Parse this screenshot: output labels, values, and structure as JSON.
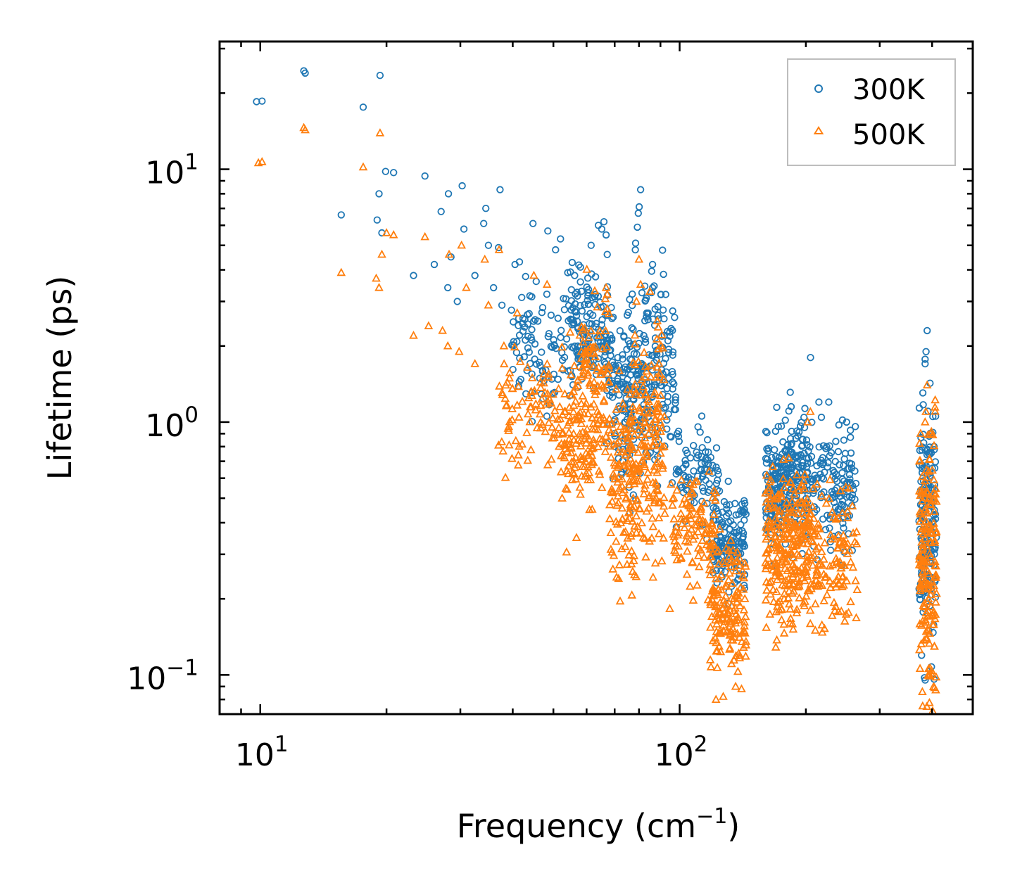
{
  "chart_data": {
    "type": "scatter",
    "xscale": "log",
    "yscale": "log",
    "xlim": [
      8,
      500
    ],
    "ylim": [
      0.07,
      32
    ],
    "xlabel": "Frequency (cm",
    "xlabel_sup": "−1",
    "xlabel_end": ")",
    "ylabel": "Lifetime (ps)",
    "x_ticks": [
      {
        "value": 10,
        "base": "10",
        "exp": "1"
      },
      {
        "value": 100,
        "base": "10",
        "exp": "2"
      }
    ],
    "y_ticks": [
      {
        "value": 10,
        "base": "10",
        "exp": "1"
      },
      {
        "value": 1,
        "base": "10",
        "exp": "0"
      },
      {
        "value": 0.1,
        "base": "10",
        "exp": "−1"
      }
    ],
    "legend_position": "top-right",
    "series": [
      {
        "name": "300K",
        "marker": "circle",
        "color": "#1f77b4",
        "points": [
          [
            9.8,
            18.5
          ],
          [
            10.1,
            18.6
          ],
          [
            12.7,
            24.5
          ],
          [
            12.8,
            24.0
          ],
          [
            17.6,
            17.6
          ],
          [
            19.3,
            23.5
          ],
          [
            19.9,
            9.8
          ],
          [
            20.8,
            9.7
          ],
          [
            24.7,
            9.4
          ],
          [
            28.1,
            8.0
          ],
          [
            30.3,
            8.6
          ],
          [
            37.3,
            8.3
          ],
          [
            15.6,
            6.6
          ],
          [
            19.0,
            6.3
          ],
          [
            19.5,
            5.6
          ],
          [
            27.0,
            6.8
          ],
          [
            30.6,
            5.8
          ],
          [
            34.1,
            6.1
          ],
          [
            34.5,
            7.0
          ],
          [
            19.2,
            8.0
          ],
          [
            26.0,
            4.2
          ],
          [
            28.5,
            4.5
          ],
          [
            35.0,
            5.0
          ],
          [
            37.0,
            4.9
          ],
          [
            44.7,
            6.1
          ],
          [
            48.5,
            5.7
          ],
          [
            23.2,
            3.8
          ],
          [
            28.0,
            3.4
          ],
          [
            29.5,
            3.0
          ],
          [
            32.5,
            3.8
          ],
          [
            36.0,
            3.4
          ],
          [
            37.7,
            2.9
          ],
          [
            40.5,
            4.2
          ],
          [
            41.5,
            4.3
          ],
          [
            45.5,
            3.6
          ],
          [
            50.6,
            4.8
          ],
          [
            52.0,
            5.3
          ],
          [
            54.1,
            3.9
          ],
          [
            56.2,
            3.8
          ],
          [
            58.0,
            4.1
          ],
          [
            61.5,
            5.0
          ],
          [
            64.0,
            6.0
          ],
          [
            65.2,
            5.8
          ],
          [
            66.0,
            6.2
          ],
          [
            66.8,
            5.5
          ],
          [
            67.2,
            4.6
          ],
          [
            78.4,
            4.8
          ],
          [
            79.7,
            6.7
          ],
          [
            80.7,
            8.3
          ],
          [
            80.1,
            7.1
          ],
          [
            79.3,
            5.9
          ],
          [
            86.2,
            4.2
          ],
          [
            90.2,
            3.2
          ],
          [
            205.2,
            1.8
          ],
          [
            214.8,
            1.2
          ],
          [
            226.8,
            1.2
          ],
          [
            250.1,
            1.0
          ],
          [
            262.4,
            0.96
          ],
          [
            389.3,
            2.3
          ],
          [
            386.8,
            1.9
          ],
          [
            384.9,
            1.7
          ],
          [
            402.5,
            0.38
          ],
          [
            409.3,
            0.35
          ]
        ],
        "clusters": [
          {
            "x": [
              39.5,
              58.0
            ],
            "y_center": 1.9,
            "y_spread": 0.28,
            "count": 110
          },
          {
            "x": [
              55.0,
              67.5
            ],
            "y_center": 2.4,
            "y_spread": 0.22,
            "count": 120
          },
          {
            "x": [
              67.0,
              76.0
            ],
            "y_center": 1.3,
            "y_spread": 0.35,
            "count": 90
          },
          {
            "x": [
              74.0,
              84.0
            ],
            "y_center": 1.5,
            "y_spread": 0.4,
            "count": 110
          },
          {
            "x": [
              84.0,
              98.0
            ],
            "y_center": 1.6,
            "y_spread": 0.4,
            "count": 110
          },
          {
            "x": [
              98.0,
              125.0
            ],
            "y_center": 0.62,
            "y_spread": 0.2,
            "count": 90
          },
          {
            "x": [
              120.0,
              144.0
            ],
            "y_center": 0.33,
            "y_spread": 0.18,
            "count": 140
          },
          {
            "x": [
              160.0,
              202.0
            ],
            "y_center": 0.58,
            "y_spread": 0.25,
            "count": 260
          },
          {
            "x": [
              200.0,
              264.0
            ],
            "y_center": 0.55,
            "y_spread": 0.24,
            "count": 140
          },
          {
            "x": [
              372.0,
              408.0
            ],
            "y_center": 0.42,
            "y_spread": 0.45,
            "count": 170
          }
        ]
      },
      {
        "name": "500K",
        "marker": "triangle",
        "color": "#ff7f0e",
        "points": [
          [
            9.9,
            10.6
          ],
          [
            10.1,
            10.7
          ],
          [
            12.7,
            14.6
          ],
          [
            12.8,
            14.3
          ],
          [
            17.6,
            10.2
          ],
          [
            19.3,
            13.9
          ],
          [
            15.6,
            3.9
          ],
          [
            18.9,
            3.7
          ],
          [
            19.2,
            3.4
          ],
          [
            19.5,
            4.6
          ],
          [
            20.0,
            5.6
          ],
          [
            20.8,
            5.5
          ],
          [
            24.7,
            5.4
          ],
          [
            28.2,
            4.6
          ],
          [
            30.2,
            5.0
          ],
          [
            31.0,
            3.4
          ],
          [
            35.0,
            2.9
          ],
          [
            37.1,
            4.8
          ],
          [
            23.2,
            2.2
          ],
          [
            25.2,
            2.4
          ],
          [
            27.2,
            2.3
          ],
          [
            28.0,
            2.0
          ],
          [
            29.8,
            1.9
          ],
          [
            32.5,
            1.7
          ],
          [
            34.3,
            4.4
          ],
          [
            38.1,
            2.0
          ],
          [
            41.0,
            2.7
          ],
          [
            44.9,
            3.8
          ],
          [
            48.3,
            3.5
          ],
          [
            61.0,
            0.45
          ],
          [
            64.5,
            0.62
          ],
          [
            66.8,
            3.4
          ],
          [
            67.2,
            3.2
          ],
          [
            80.7,
            3.5
          ],
          [
            80.0,
            4.4
          ],
          [
            78.9,
            3.0
          ],
          [
            90.3,
            2.0
          ],
          [
            205.0,
            1.1
          ],
          [
            202.0,
            1.0
          ],
          [
            175.0,
            0.165
          ],
          [
            140.5,
            0.088
          ],
          [
            136.0,
            0.09
          ],
          [
            389.3,
            1.4
          ],
          [
            386.5,
            1.1
          ],
          [
            384.9,
            1.0
          ],
          [
            400.0,
            0.1
          ],
          [
            409.0,
            0.098
          ]
        ],
        "clusters": [
          {
            "x": [
              37.0,
              58.0
            ],
            "y_center": 1.1,
            "y_spread": 0.22,
            "count": 110
          },
          {
            "x": [
              52.0,
              62.0
            ],
            "y_center": 0.85,
            "y_spread": 0.3,
            "count": 90
          },
          {
            "x": [
              58.0,
              68.0
            ],
            "y_center": 1.3,
            "y_spread": 0.35,
            "count": 110
          },
          {
            "x": [
              68.0,
              78.0
            ],
            "y_center": 0.55,
            "y_spread": 0.4,
            "count": 110
          },
          {
            "x": [
              76.0,
              92.0
            ],
            "y_center": 0.8,
            "y_spread": 0.45,
            "count": 180
          },
          {
            "x": [
              92.0,
              122.0
            ],
            "y_center": 0.38,
            "y_spread": 0.22,
            "count": 110
          },
          {
            "x": [
              118.0,
              144.0
            ],
            "y_center": 0.18,
            "y_spread": 0.26,
            "count": 160
          },
          {
            "x": [
              160.0,
              202.0
            ],
            "y_center": 0.33,
            "y_spread": 0.28,
            "count": 260
          },
          {
            "x": [
              200.0,
              266.0
            ],
            "y_center": 0.3,
            "y_spread": 0.26,
            "count": 140
          },
          {
            "x": [
              372.0,
              410.0
            ],
            "y_center": 0.26,
            "y_spread": 0.5,
            "count": 180
          }
        ]
      }
    ]
  }
}
